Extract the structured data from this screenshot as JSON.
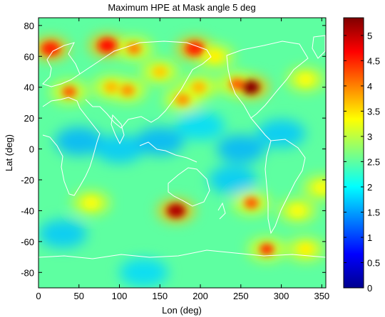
{
  "chart_data": {
    "type": "heatmap",
    "title": "Maximum HPE at Mask angle 5 deg",
    "xlabel": "Lon (deg)",
    "ylabel": "Lat (deg)",
    "xlim": [
      0,
      355
    ],
    "ylim": [
      -90,
      85
    ],
    "x_ticks": [
      0,
      50,
      100,
      150,
      200,
      250,
      300,
      350
    ],
    "y_ticks": [
      -80,
      -60,
      -40,
      -20,
      0,
      20,
      40,
      60,
      80
    ],
    "colorbar": {
      "min": 0,
      "max": 5.35,
      "ticks": [
        0,
        0.5,
        1,
        1.5,
        2,
        2.5,
        3,
        3.5,
        4,
        4.5,
        5
      ],
      "colormap": "jet"
    },
    "background_value": 2.5,
    "hotspots": [
      {
        "lon": 15,
        "lat": 65,
        "value": 4.5
      },
      {
        "lon": 38,
        "lat": 37,
        "value": 4.2
      },
      {
        "lon": 85,
        "lat": 67,
        "value": 4.6
      },
      {
        "lon": 118,
        "lat": 65,
        "value": 4.0
      },
      {
        "lon": 110,
        "lat": 38,
        "value": 3.9
      },
      {
        "lon": 90,
        "lat": 40,
        "value": 3.7
      },
      {
        "lon": 150,
        "lat": 50,
        "value": 3.6
      },
      {
        "lon": 178,
        "lat": 32,
        "value": 3.9
      },
      {
        "lon": 198,
        "lat": 40,
        "value": 3.7
      },
      {
        "lon": 193,
        "lat": 65,
        "value": 4.5
      },
      {
        "lon": 262,
        "lat": 40,
        "value": 5.3
      },
      {
        "lon": 245,
        "lat": 42,
        "value": 4.2
      },
      {
        "lon": 218,
        "lat": 60,
        "value": 3.4
      },
      {
        "lon": 170,
        "lat": -40,
        "value": 5.1
      },
      {
        "lon": 263,
        "lat": -35,
        "value": 4.2
      },
      {
        "lon": 282,
        "lat": -65,
        "value": 4.4
      },
      {
        "lon": 65,
        "lat": -35,
        "value": 3.3
      },
      {
        "lon": 320,
        "lat": -40,
        "value": 3.3
      },
      {
        "lon": 330,
        "lat": 45,
        "value": 3.3
      },
      {
        "lon": 330,
        "lat": -65,
        "value": 3.4
      },
      {
        "lon": 350,
        "lat": -25,
        "value": 3.3
      }
    ],
    "low_regions": [
      {
        "lon": 50,
        "lat": 5,
        "value": 1.6
      },
      {
        "lon": 100,
        "lat": 0,
        "value": 1.7
      },
      {
        "lon": 150,
        "lat": 5,
        "value": 1.6
      },
      {
        "lon": 200,
        "lat": 15,
        "value": 1.8
      },
      {
        "lon": 250,
        "lat": 0,
        "value": 1.6
      },
      {
        "lon": 300,
        "lat": 10,
        "value": 1.7
      },
      {
        "lon": 240,
        "lat": -20,
        "value": 1.7
      },
      {
        "lon": 30,
        "lat": -55,
        "value": 1.7
      },
      {
        "lon": 130,
        "lat": -80,
        "value": 1.8
      }
    ]
  }
}
